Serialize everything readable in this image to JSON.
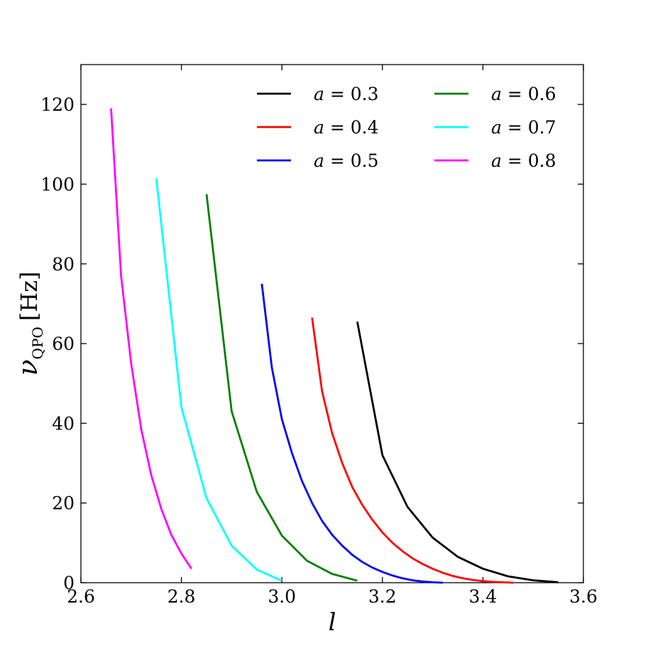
{
  "chart_data": {
    "type": "line",
    "title": "",
    "xlabel": "l",
    "ylabel": {
      "symbol": "ν",
      "subscript": "QPO",
      "unit": "[Hz]"
    },
    "xlim": [
      2.6,
      3.6
    ],
    "ylim": [
      0,
      130
    ],
    "xticks": [
      "2.6",
      "2.8",
      "3.0",
      "3.2",
      "3.4",
      "3.6"
    ],
    "yticks": [
      "0",
      "20",
      "40",
      "60",
      "80",
      "100",
      "120"
    ],
    "grid": false,
    "legend": "top-right, 2 columns",
    "series": [
      {
        "name": "a = 0.3",
        "label_var": "a",
        "label_val": "0.3",
        "color": "#000000",
        "x": [
          3.15,
          3.2,
          3.25,
          3.3,
          3.35,
          3.4,
          3.45,
          3.5,
          3.55
        ],
        "y": [
          65.5,
          32.0,
          19.0,
          11.3,
          6.5,
          3.5,
          1.6,
          0.6,
          0.1
        ]
      },
      {
        "name": "a = 0.4",
        "label_var": "a",
        "label_val": "0.4",
        "color": "#ff0000",
        "x": [
          3.06,
          3.08,
          3.1,
          3.12,
          3.14,
          3.16,
          3.18,
          3.2,
          3.22,
          3.24,
          3.26,
          3.28,
          3.3,
          3.32,
          3.34,
          3.36,
          3.38,
          3.4,
          3.42,
          3.44,
          3.46
        ],
        "y": [
          66.5,
          48.0,
          37.5,
          30.0,
          24.0,
          19.5,
          15.8,
          12.6,
          10.0,
          7.9,
          6.1,
          4.7,
          3.5,
          2.5,
          1.7,
          1.1,
          0.7,
          0.4,
          0.2,
          0.1,
          0.0
        ]
      },
      {
        "name": "a = 0.5",
        "label_var": "a",
        "label_val": "0.5",
        "color": "#0000ff",
        "x": [
          2.96,
          2.98,
          3.0,
          3.02,
          3.04,
          3.06,
          3.08,
          3.1,
          3.12,
          3.14,
          3.16,
          3.18,
          3.2,
          3.22,
          3.24,
          3.26,
          3.28,
          3.3,
          3.32
        ],
        "y": [
          75.0,
          54.0,
          41.0,
          32.5,
          25.5,
          20.0,
          15.5,
          12.0,
          9.3,
          7.0,
          5.2,
          3.8,
          2.7,
          1.8,
          1.1,
          0.6,
          0.3,
          0.1,
          0.0
        ]
      },
      {
        "name": "a = 0.6",
        "label_var": "a",
        "label_val": "0.6",
        "color": "#008000",
        "x": [
          2.85,
          2.9,
          2.95,
          3.0,
          3.05,
          3.1,
          3.15
        ],
        "y": [
          97.5,
          43.0,
          22.8,
          11.8,
          5.5,
          2.2,
          0.5
        ]
      },
      {
        "name": "a = 0.7",
        "label_var": "a",
        "label_val": "0.7",
        "color": "#00ffff",
        "x": [
          2.75,
          2.8,
          2.85,
          2.9,
          2.95,
          3.0
        ],
        "y": [
          101.5,
          44.0,
          21.2,
          9.3,
          3.3,
          0.5
        ]
      },
      {
        "name": "a = 0.8",
        "label_var": "a",
        "label_val": "0.8",
        "color": "#ff00ff",
        "x": [
          2.66,
          2.68,
          2.7,
          2.72,
          2.74,
          2.76,
          2.78,
          2.8,
          2.82
        ],
        "y": [
          119.0,
          77.0,
          55.0,
          38.5,
          27.0,
          18.5,
          12.0,
          7.3,
          3.5
        ]
      }
    ]
  }
}
